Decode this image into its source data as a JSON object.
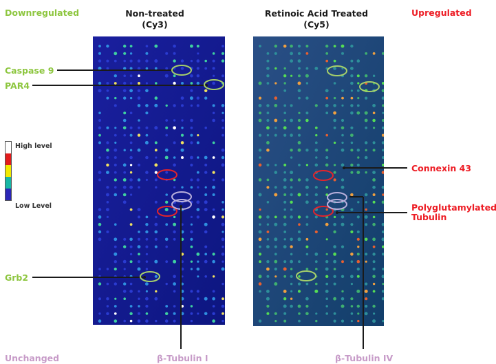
{
  "labels": {
    "downregulated": "Downregulated",
    "upregulated": "Upregulated",
    "unchanged": "Unchanged",
    "non_treated_line1": "Non-treated",
    "non_treated_line2": "(Cy3)",
    "ra_line1": "Retinoic Acid Treated",
    "ra_line2": "(Cy5)",
    "caspase9": "Caspase 9",
    "par4": "PAR4",
    "grb2": "Grb2",
    "connexin43": "Connexin 43",
    "polyglut_line1": "Polyglutamylated",
    "polyglut_line2": "Tubulin",
    "btub1": "β-Tubulin I",
    "btub4": "β-Tubulin IV"
  },
  "legend": {
    "high": "High level",
    "low": "Low Level",
    "colors": [
      "#ffffff",
      "#e31b1b",
      "#f2ea00",
      "#17b7a5",
      "#2b26b8"
    ]
  },
  "colors": {
    "downregulated": "#8dc63f",
    "upregulated": "#ed1c24",
    "unchanged": "#c79bc8",
    "circle_green": "#a6cf6a",
    "circle_red": "#e3242b",
    "circle_lavender": "#b9b0dc"
  }
}
